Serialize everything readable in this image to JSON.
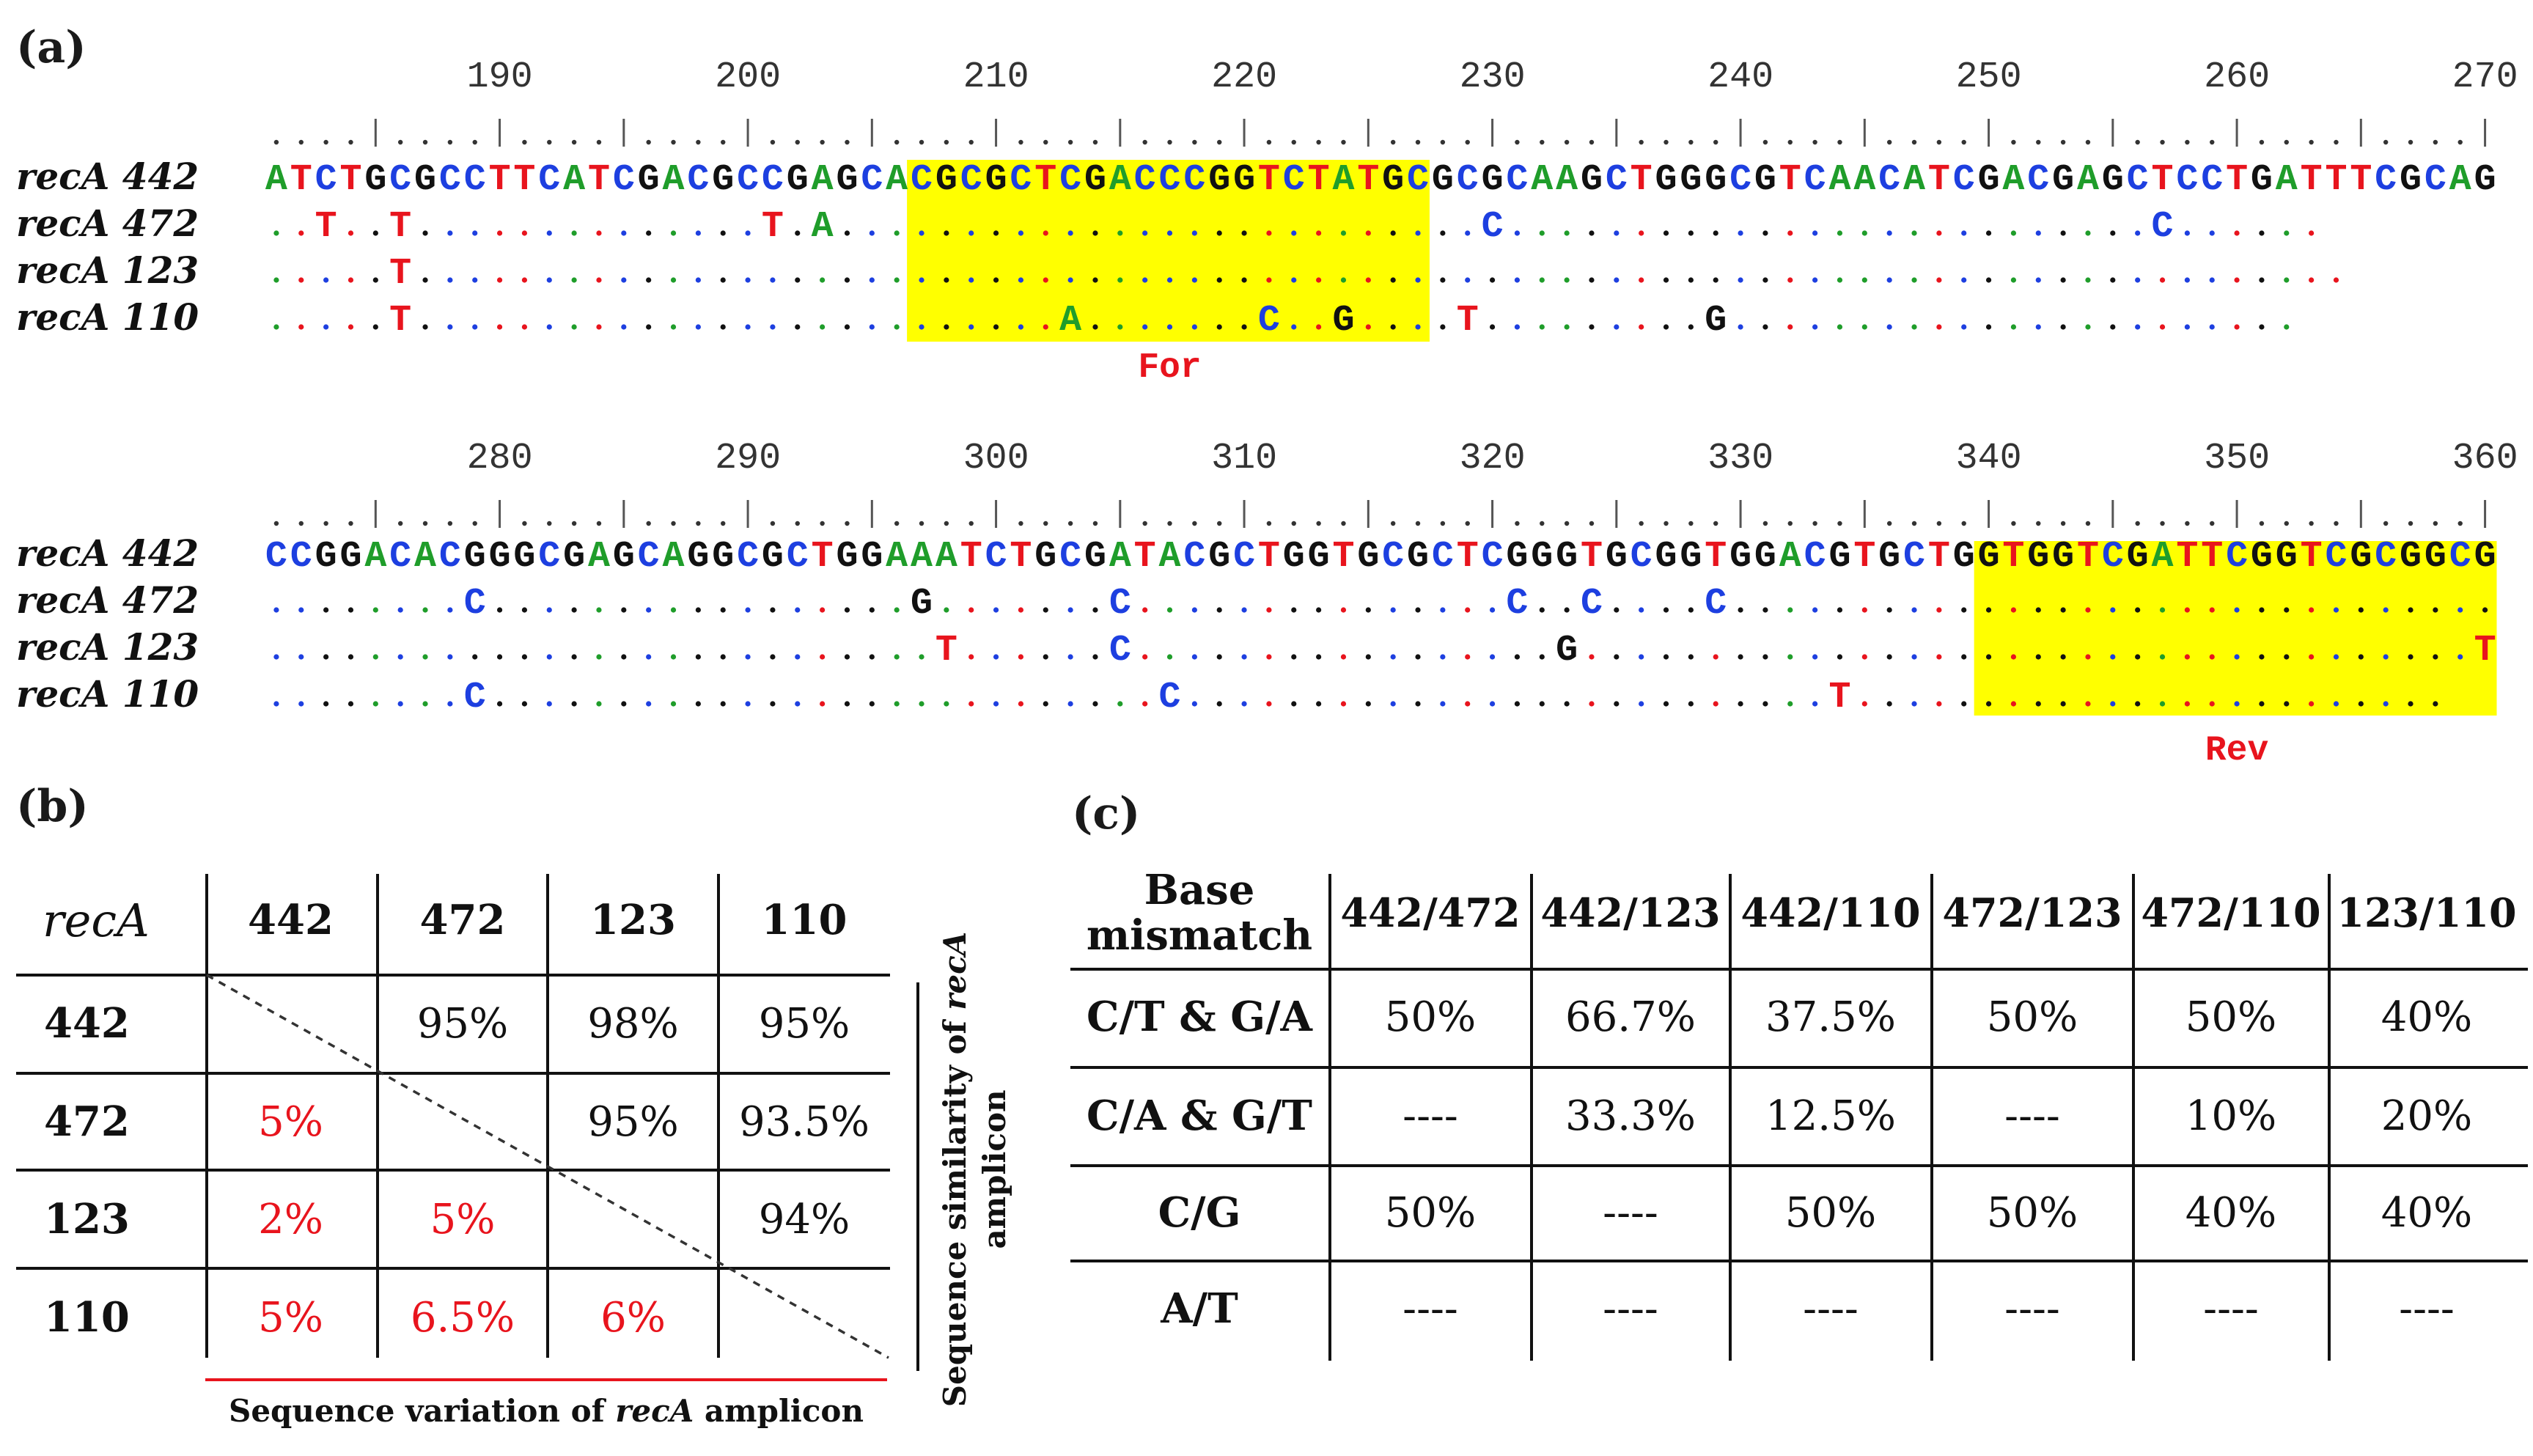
{
  "panels": {
    "a": "(a)",
    "b": "(b)",
    "c": "(c)"
  },
  "alignment": {
    "blocks": [
      {
        "start": 180,
        "ticks": [
          "190",
          "200",
          "210",
          "220",
          "230",
          "240",
          "250",
          "260",
          "270"
        ],
        "rows": [
          {
            "name": "recA 442",
            "seq": "ATCTGCGCCTTCATCGACGCCGAGCACGCGCTCGACCCGGTCTATGCGCGCAAGCTGGGCGTCAACATCGACGAGCTCCTGATTTCGCAG"
          },
          {
            "name": "recA 472",
            "seq": "..T..T..............T.A..........................C..........................C......"
          },
          {
            "name": "recA 123",
            "seq": ".....T.............................................................................."
          },
          {
            "name": "recA 110",
            "seq": ".....T..........................A.......C..G....T.........G......................."
          }
        ],
        "primer": {
          "label": "For"
        }
      },
      {
        "start": 270,
        "ticks": [
          "280",
          "290",
          "300",
          "310",
          "320",
          "330",
          "340",
          "350",
          "360"
        ],
        "rows": [
          {
            "name": "recA 442",
            "seq": "CCGGACACGGGCGAGCAGGCGCTGGAAATCTGCGATACGCTGGTGCGCTCGGGTGCGGTGGACGTGCTGGTGGTCGATTCGGTCGCGGCG"
          },
          {
            "name": "recA 472",
            "seq": "........C.................G.......C...............C..C....C..............................."
          },
          {
            "name": "recA 123",
            "seq": "...........................T......C.................G....................................T"
          },
          {
            "name": "recA 110",
            "seq": "........C...........................C..........................T........................"
          }
        ],
        "primer": {
          "label": "Rev"
        }
      }
    ]
  },
  "similarity_table": {
    "corner": "recA",
    "headers": [
      "442",
      "472",
      "123",
      "110"
    ],
    "rows": [
      {
        "label": "442",
        "cells": [
          "",
          "95%",
          "98%",
          "95%"
        ]
      },
      {
        "label": "472",
        "cells": [
          "5%",
          "",
          "95%",
          "93.5%"
        ]
      },
      {
        "label": "123",
        "cells": [
          "2%",
          "5%",
          "",
          "94%"
        ]
      },
      {
        "label": "110",
        "cells": [
          "5%",
          "6.5%",
          "6%",
          ""
        ]
      }
    ],
    "side_label_prefix": "Sequence similarity of ",
    "side_label_italic": "recA",
    "side_label_suffix": "amplicon",
    "bottom_label_prefix": "Sequence variation of ",
    "bottom_label_italic": "recA",
    "bottom_label_suffix": " amplicon"
  },
  "mismatch_table": {
    "corner_line1": "Base",
    "corner_line2": "mismatch",
    "headers": [
      "442/472",
      "442/123",
      "442/110",
      "472/123",
      "472/110",
      "123/110"
    ],
    "rows": [
      {
        "label": "C/T & G/A",
        "cells": [
          "50%",
          "66.7%",
          "37.5%",
          "50%",
          "50%",
          "40%"
        ]
      },
      {
        "label": "C/A & G/T",
        "cells": [
          "----",
          "33.3%",
          "12.5%",
          "----",
          "10%",
          "20%"
        ]
      },
      {
        "label": "C/G",
        "cells": [
          "50%",
          "----",
          "50%",
          "50%",
          "40%",
          "40%"
        ]
      },
      {
        "label": "A/T",
        "cells": [
          "----",
          "----",
          "----",
          "----",
          "----",
          "----"
        ]
      }
    ]
  },
  "colors": {
    "A": "#1f9d2a",
    "C": "#1d3fe0",
    "G": "#111111",
    "T": "#e8141d",
    "highlight": "#ffff00",
    "red": "#e8141d"
  }
}
